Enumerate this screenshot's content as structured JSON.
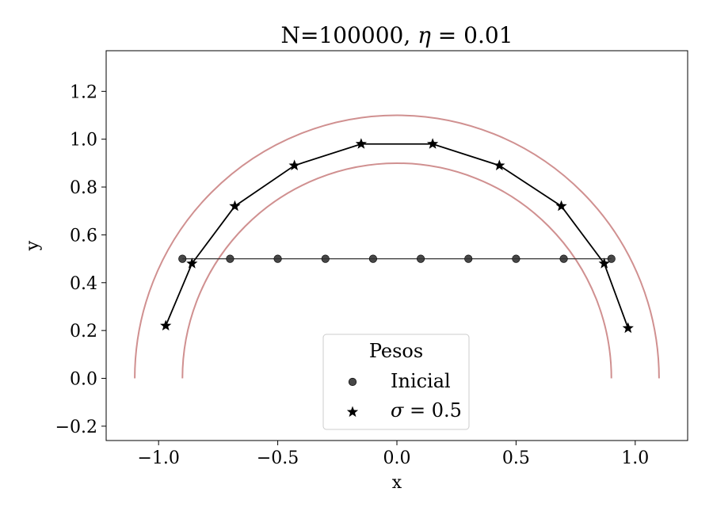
{
  "chart_data": {
    "type": "line",
    "title_plain": "N=100000, ",
    "title_symbol": "η",
    "title_value": " = 0.01",
    "xlabel": "x",
    "ylabel": "y",
    "xlim": [
      -1.22,
      1.22
    ],
    "ylim": [
      -0.26,
      1.37
    ],
    "xticks": [
      -1.0,
      -0.5,
      0.0,
      0.5,
      1.0
    ],
    "xtick_labels": [
      "−1.0",
      "−0.5",
      "0.0",
      "0.5",
      "1.0"
    ],
    "yticks": [
      -0.2,
      0.0,
      0.2,
      0.4,
      0.6,
      0.8,
      1.0,
      1.2
    ],
    "ytick_labels": [
      "−0.2",
      "0.0",
      "0.2",
      "0.4",
      "0.6",
      "0.8",
      "1.0",
      "1.2"
    ],
    "grid": false,
    "arcs": [
      {
        "radius": 1.1,
        "color": "#d09090"
      },
      {
        "radius": 0.9,
        "color": "#d09090"
      }
    ],
    "series": [
      {
        "name": "Inicial",
        "marker": "circle",
        "color": "#333333",
        "x": [
          -0.9,
          -0.7,
          -0.5,
          -0.3,
          -0.1,
          0.1,
          0.3,
          0.5,
          0.7,
          0.9
        ],
        "y": [
          0.5,
          0.5,
          0.5,
          0.5,
          0.5,
          0.5,
          0.5,
          0.5,
          0.5,
          0.5
        ]
      },
      {
        "name": "σ = 0.5",
        "legend_symbol": "σ",
        "legend_value": " = 0.5",
        "marker": "star",
        "color": "#000000",
        "x": [
          -0.97,
          -0.86,
          -0.68,
          -0.43,
          -0.15,
          0.15,
          0.43,
          0.69,
          0.87,
          0.97
        ],
        "y": [
          0.22,
          0.48,
          0.72,
          0.89,
          0.98,
          0.98,
          0.89,
          0.72,
          0.48,
          0.21
        ]
      }
    ],
    "legend": {
      "title": "Pesos",
      "placement": "lower-center"
    }
  }
}
